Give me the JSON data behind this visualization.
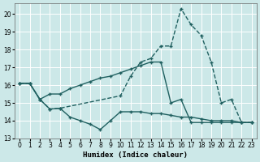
{
  "bg_color": "#cce8e8",
  "grid_color": "#ffffff",
  "line_color": "#206060",
  "xlabel": "Humidex (Indice chaleur)",
  "xlim": [
    -0.5,
    23.5
  ],
  "ylim": [
    13,
    20.6
  ],
  "yticks": [
    13,
    14,
    15,
    16,
    17,
    18,
    19,
    20
  ],
  "xticks": [
    0,
    1,
    2,
    3,
    4,
    5,
    6,
    7,
    8,
    9,
    10,
    11,
    12,
    13,
    14,
    15,
    16,
    17,
    18,
    19,
    20,
    21,
    22,
    23
  ],
  "series": [
    {
      "x": [
        0,
        1,
        2,
        3,
        4,
        5,
        6,
        7,
        8,
        9,
        10,
        11,
        12,
        13,
        14,
        15,
        16,
        17,
        18,
        19,
        20,
        21,
        22,
        23
      ],
      "y": [
        16.1,
        16.1,
        15.2,
        15.5,
        15.5,
        15.8,
        16.0,
        16.2,
        16.4,
        16.5,
        16.7,
        16.9,
        17.1,
        17.3,
        17.3,
        15.0,
        15.2,
        13.9,
        13.9,
        13.9,
        13.9,
        13.9,
        13.9,
        13.9
      ],
      "style": "-",
      "linewidth": 1.0,
      "marker": "+",
      "markersize": 3.5
    },
    {
      "x": [
        0,
        1,
        2,
        3,
        4,
        10,
        11,
        12,
        13,
        14,
        15,
        16,
        17,
        18,
        19,
        20,
        21,
        22,
        23
      ],
      "y": [
        16.1,
        16.1,
        15.2,
        14.65,
        14.7,
        15.4,
        16.5,
        17.3,
        17.5,
        18.2,
        18.2,
        20.3,
        19.4,
        18.8,
        17.3,
        15.0,
        15.2,
        13.9,
        13.9
      ],
      "style": "--",
      "linewidth": 1.0,
      "marker": "+",
      "markersize": 3.5
    },
    {
      "x": [
        0,
        1,
        2,
        3,
        4,
        5,
        6,
        7,
        8,
        9,
        10,
        11,
        12,
        13,
        14,
        15,
        16,
        17,
        18,
        19,
        20,
        21,
        22,
        23
      ],
      "y": [
        16.1,
        16.1,
        15.2,
        14.65,
        14.7,
        14.2,
        14.0,
        13.8,
        13.5,
        14.0,
        14.5,
        14.5,
        14.5,
        14.4,
        14.4,
        14.3,
        14.2,
        14.2,
        14.1,
        14.0,
        14.0,
        14.0,
        13.9,
        13.9
      ],
      "style": "-",
      "linewidth": 1.0,
      "marker": "+",
      "markersize": 3.5
    }
  ]
}
